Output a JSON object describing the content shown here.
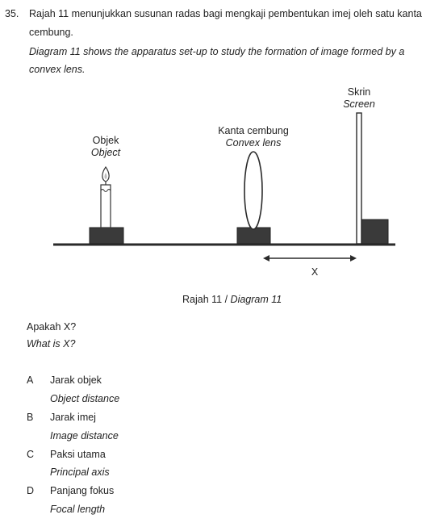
{
  "question": {
    "number": "35.",
    "stem_malay_line1": "Rajah 11 menunjukkan susunan radas bagi mengkaji pembentukan imej oleh satu kanta",
    "stem_malay_line2": "cembung.",
    "stem_english_line1": "Diagram 11 shows the apparatus set-up to study the formation of image formed by a",
    "stem_english_line2": "convex lens."
  },
  "diagram": {
    "object_label_malay": "Objek",
    "object_label_english": "Object",
    "lens_label_malay": "Kanta cembung",
    "lens_label_english": "Convex lens",
    "screen_label_malay": "Skrin",
    "screen_label_english": "Screen",
    "distance_label": "X",
    "caption_malay": "Rajah 11 /",
    "caption_english": "Diagram 11"
  },
  "prompt": {
    "malay": "Apakah X?",
    "english": "What is X?"
  },
  "options": [
    {
      "letter": "A",
      "malay": "Jarak objek",
      "english": "Object distance"
    },
    {
      "letter": "B",
      "malay": "Jarak imej",
      "english": "Image distance"
    },
    {
      "letter": "C",
      "malay": "Paksi utama",
      "english": "Principal axis"
    },
    {
      "letter": "D",
      "malay": "Panjang fokus",
      "english": "Focal length"
    }
  ]
}
